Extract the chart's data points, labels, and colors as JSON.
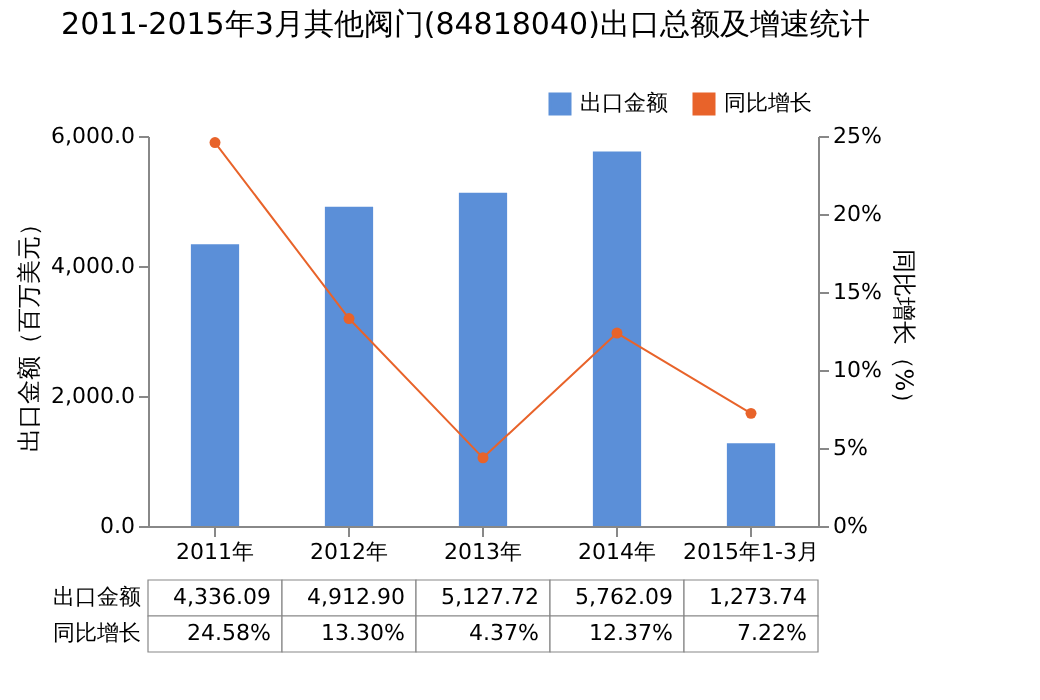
{
  "chart_data": {
    "type": "bar",
    "title": "2011-2015年3月其他阀门(84818040)出口总额及增速统计",
    "categories": [
      "2011年",
      "2012年",
      "2013年",
      "2014年",
      "2015年1-3月"
    ],
    "ylabel": "出口金额（百万美元）",
    "y2label": "同比增长（%）",
    "series": [
      {
        "name": "出口金额",
        "color": "#5b8fd8",
        "values": [
          4336.09,
          4912.9,
          5127.72,
          5762.09,
          1273.74
        ],
        "value_labels": [
          "4,336.09",
          "4,912.90",
          "5,127.72",
          "5,762.09",
          "1,273.74"
        ]
      },
      {
        "name": "同比增长",
        "type": "line",
        "axis": "y2",
        "color": "#e8632a",
        "values": [
          24.58,
          13.3,
          4.37,
          12.37,
          7.22
        ],
        "value_labels": [
          "24.58%",
          "13.30%",
          "4.37%",
          "12.37%",
          "7.22%"
        ]
      }
    ],
    "ylim": [
      0,
      6000
    ],
    "yticks": [
      {
        "value": 0,
        "label": "0.0"
      },
      {
        "value": 2000,
        "label": "2,000.0"
      },
      {
        "value": 4000,
        "label": "4,000.0"
      },
      {
        "value": 6000,
        "label": "6,000.0"
      }
    ],
    "y2lim": [
      0,
      25
    ],
    "y2ticks": [
      {
        "value": 0,
        "label": "0%"
      },
      {
        "value": 5,
        "label": "5%"
      },
      {
        "value": 10,
        "label": "10%"
      },
      {
        "value": 15,
        "label": "15%"
      },
      {
        "value": 20,
        "label": "20%"
      },
      {
        "value": 25,
        "label": "25%"
      }
    ],
    "legend": "top right",
    "marker": "circle",
    "line_style": "solid",
    "grid": false
  }
}
